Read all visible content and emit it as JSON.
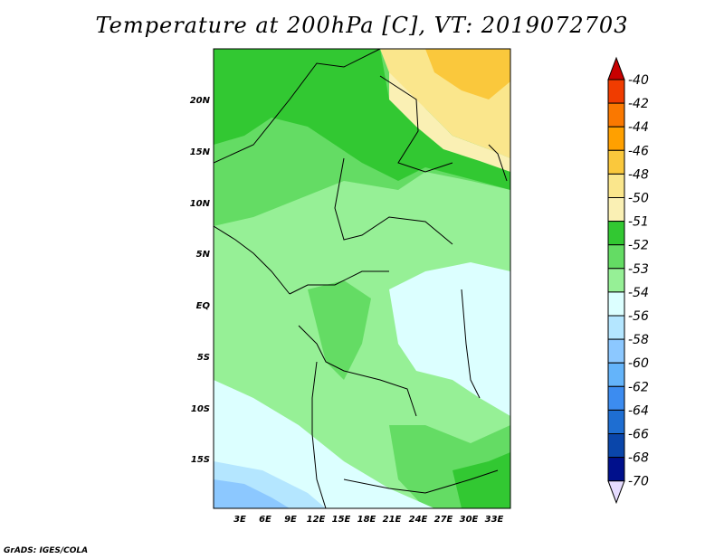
{
  "title": "Temperature at 200hPa [C], VT: 2019072703",
  "credit": "GrADS: IGES/COLA",
  "lat_labels": [
    "20N",
    "15N",
    "10N",
    "5N",
    "EQ",
    "5S",
    "10S",
    "15S"
  ],
  "lon_labels": [
    "3E",
    "6E",
    "9E",
    "12E",
    "15E",
    "18E",
    "21E",
    "24E",
    "27E",
    "30E",
    "33E"
  ],
  "colorbar": {
    "labels": [
      "-40",
      "-42",
      "-44",
      "-46",
      "-48",
      "-50",
      "-51",
      "-52",
      "-53",
      "-54",
      "-56",
      "-58",
      "-60",
      "-62",
      "-64",
      "-66",
      "-68",
      "-70"
    ],
    "colors": [
      "#c80000",
      "#f03c00",
      "#fa7800",
      "#ffa000",
      "#fac83c",
      "#fae68c",
      "#faf0b4",
      "#32c832",
      "#64dc64",
      "#96f096",
      "#dcffff",
      "#b4e6ff",
      "#8cc8ff",
      "#64b4fa",
      "#3c8cf0",
      "#1e6ed2",
      "#0a46aa",
      "#00108c",
      "#e6dcff"
    ]
  },
  "regions": [
    {
      "name": "north-warm",
      "color": "#fae68c"
    },
    {
      "name": "north-mid",
      "color": "#32c832"
    },
    {
      "name": "central",
      "color": "#96f096"
    },
    {
      "name": "cold-east",
      "color": "#dcffff"
    },
    {
      "name": "cold-south",
      "color": "#8cc8ff"
    }
  ]
}
